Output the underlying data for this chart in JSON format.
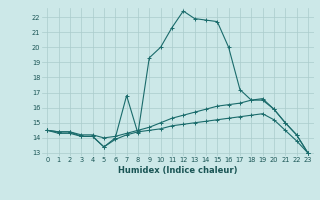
{
  "title": "",
  "xlabel": "Humidex (Indice chaleur)",
  "bg_color": "#cce8e8",
  "grid_color": "#aacccc",
  "line_color": "#1a6b6b",
  "xlim": [
    -0.5,
    23.5
  ],
  "ylim": [
    12.8,
    22.6
  ],
  "yticks": [
    13,
    14,
    15,
    16,
    17,
    18,
    19,
    20,
    21,
    22
  ],
  "xticks": [
    0,
    1,
    2,
    3,
    4,
    5,
    6,
    7,
    8,
    9,
    10,
    11,
    12,
    13,
    14,
    15,
    16,
    17,
    18,
    19,
    20,
    21,
    22,
    23
  ],
  "series": [
    {
      "x": [
        0,
        1,
        2,
        3,
        4,
        5,
        6,
        7,
        8,
        9,
        10,
        11,
        12,
        13,
        14,
        15,
        16,
        17,
        18,
        19,
        20,
        21,
        22,
        23
      ],
      "y": [
        14.5,
        14.4,
        14.4,
        14.1,
        14.1,
        13.4,
        14.0,
        16.8,
        14.3,
        19.3,
        20.0,
        21.3,
        22.4,
        21.9,
        21.8,
        21.7,
        20.0,
        17.2,
        16.5,
        16.6,
        15.9,
        15.0,
        14.2,
        13.0
      ]
    },
    {
      "x": [
        0,
        1,
        2,
        3,
        4,
        5,
        6,
        7,
        8,
        9,
        10,
        11,
        12,
        13,
        14,
        15,
        16,
        17,
        18,
        19,
        20,
        21,
        22,
        23
      ],
      "y": [
        14.5,
        14.4,
        14.4,
        14.2,
        14.2,
        14.0,
        14.1,
        14.3,
        14.5,
        14.7,
        15.0,
        15.3,
        15.5,
        15.7,
        15.9,
        16.1,
        16.2,
        16.3,
        16.5,
        16.5,
        15.9,
        15.0,
        14.2,
        13.0
      ]
    },
    {
      "x": [
        0,
        1,
        2,
        3,
        4,
        5,
        6,
        7,
        8,
        9,
        10,
        11,
        12,
        13,
        14,
        15,
        16,
        17,
        18,
        19,
        20,
        21,
        22,
        23
      ],
      "y": [
        14.5,
        14.3,
        14.3,
        14.1,
        14.1,
        13.4,
        13.9,
        14.2,
        14.4,
        14.5,
        14.6,
        14.8,
        14.9,
        15.0,
        15.1,
        15.2,
        15.3,
        15.4,
        15.5,
        15.6,
        15.2,
        14.5,
        13.8,
        13.0
      ]
    }
  ]
}
